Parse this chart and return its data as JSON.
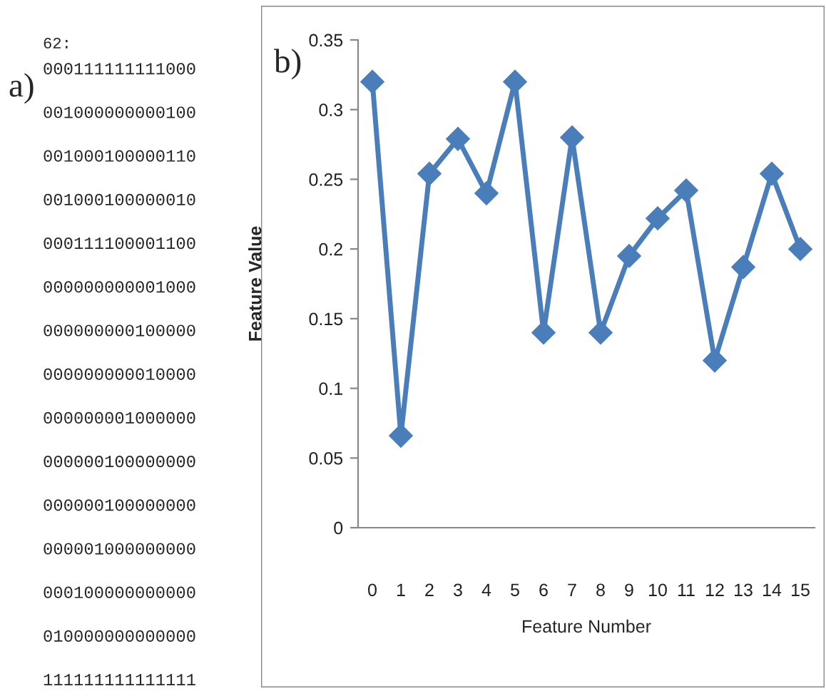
{
  "chart_data": [
    {
      "type": "other",
      "title": "a)",
      "annotations": [
        "62:",
        "000111111111000",
        "001000000000100",
        "001000100000110",
        "001000100000010",
        "000111100001100",
        "000000000001000",
        "000000000100000",
        "000000000010000",
        "000000001000000",
        "000000100000000",
        "000000100000000",
        "000001000000000",
        "000100000000000",
        "010000000000000",
        "111111111111111"
      ]
    },
    {
      "type": "line",
      "title": "b)",
      "xlabel": "Feature Number",
      "ylabel": "Feature Value",
      "categories": [
        "0",
        "1",
        "2",
        "3",
        "4",
        "5",
        "6",
        "7",
        "8",
        "9",
        "10",
        "11",
        "12",
        "13",
        "14",
        "15"
      ],
      "series": [
        {
          "color": "#4a7ebb",
          "values": [
            0.32,
            0.066,
            0.254,
            0.279,
            0.24,
            0.32,
            0.14,
            0.28,
            0.14,
            0.195,
            0.222,
            0.242,
            0.12,
            0.187,
            0.254,
            0.2
          ]
        }
      ],
      "ylim": [
        0,
        0.35
      ],
      "yticks": [
        {
          "value": 0,
          "label": "0"
        },
        {
          "value": 0.05,
          "label": "0.05"
        },
        {
          "value": 0.1,
          "label": "0.1"
        },
        {
          "value": 0.15,
          "label": "0.15"
        },
        {
          "value": 0.2,
          "label": "0.2"
        },
        {
          "value": 0.25,
          "label": "0.25"
        },
        {
          "value": 0.3,
          "label": "0.3"
        },
        {
          "value": 0.35,
          "label": "0.35"
        }
      ],
      "marker": "diamond",
      "line_style": "solid",
      "grid": false
    }
  ]
}
